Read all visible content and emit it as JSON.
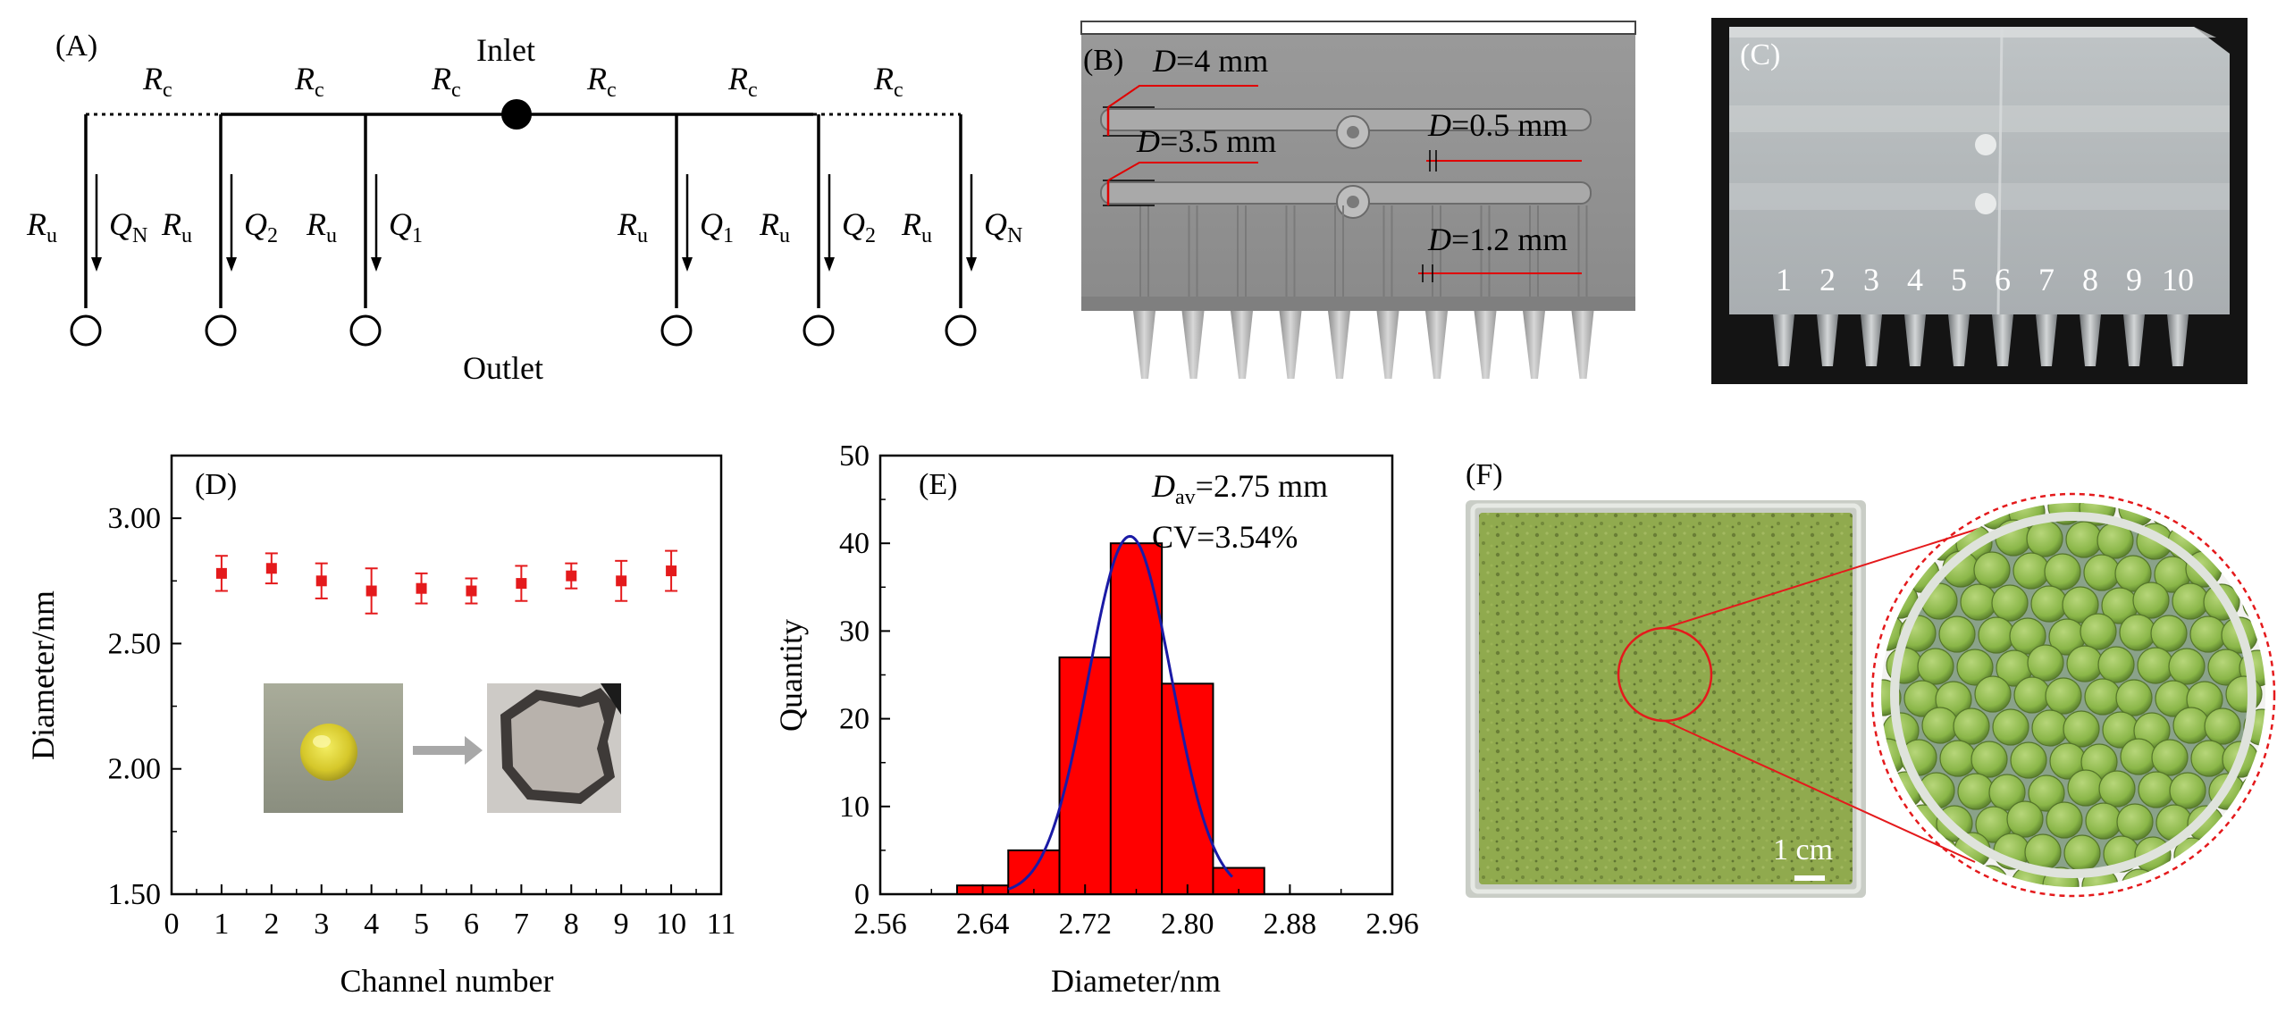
{
  "figure": {
    "panel_labels": {
      "a": "(A)",
      "b": "(B)",
      "c": "(C)",
      "d": "(D)",
      "e": "(E)",
      "f": "(F)"
    }
  },
  "panel_a": {
    "inlet": "Inlet",
    "outlet": "Outlet",
    "rc": "R",
    "rc_sub": "c",
    "ru": "R",
    "ru_sub": "u",
    "q": "Q",
    "q_subs": [
      "N",
      "2",
      "1",
      "1",
      "2",
      "N"
    ]
  },
  "panel_b": {
    "dims": [
      {
        "label": "D",
        "value": "=4 mm"
      },
      {
        "label": "D",
        "value": "=3.5 mm"
      },
      {
        "label": "D",
        "value": "=0.5 mm"
      },
      {
        "label": "D",
        "value": "=1.2 mm"
      }
    ]
  },
  "panel_c": {
    "channel_labels": [
      "1",
      "2",
      "3",
      "4",
      "5",
      "6",
      "7",
      "8",
      "9",
      "10"
    ]
  },
  "panel_f": {
    "scale_bar": "1 cm"
  },
  "chart_data": [
    {
      "type": "scatter",
      "panel": "D",
      "title": "",
      "xlabel": "Channel number",
      "ylabel": "Diameter/nm",
      "xlim": [
        0,
        11
      ],
      "ylim": [
        1.5,
        3.25
      ],
      "xticks": [
        "0",
        "1",
        "2",
        "3",
        "4",
        "5",
        "6",
        "7",
        "8",
        "9",
        "10",
        "11"
      ],
      "yticks": [
        "1.50",
        "2.00",
        "2.50",
        "3.00"
      ],
      "x": [
        1,
        2,
        3,
        4,
        5,
        6,
        7,
        8,
        9,
        10
      ],
      "y": [
        2.78,
        2.8,
        2.75,
        2.71,
        2.72,
        2.71,
        2.74,
        2.77,
        2.75,
        2.79
      ],
      "err": [
        0.07,
        0.06,
        0.07,
        0.09,
        0.06,
        0.05,
        0.07,
        0.05,
        0.08,
        0.08
      ],
      "color": "#e41a1c"
    },
    {
      "type": "bar",
      "panel": "E",
      "title": "",
      "xlabel": "Diameter/nm",
      "ylabel": "Quantity",
      "xlim": [
        2.56,
        2.96
      ],
      "ylim": [
        0,
        50
      ],
      "xticks": [
        "2.56",
        "2.64",
        "2.72",
        "2.80",
        "2.88",
        "2.96"
      ],
      "yticks": [
        "0",
        "10",
        "20",
        "30",
        "40",
        "50"
      ],
      "bin_centers": [
        2.64,
        2.68,
        2.72,
        2.76,
        2.8,
        2.84
      ],
      "bin_width": 0.04,
      "values": [
        1,
        5,
        27,
        40,
        24,
        3
      ],
      "fit_mean": 2.755,
      "fit_sd": 0.0325,
      "fit_peak": 40.8,
      "fit_range": [
        2.66,
        2.835
      ],
      "bar_color": "#ff0000",
      "fit_color": "#1a1aa6",
      "annotation_dav_main": "D",
      "annotation_dav_sub": "av",
      "annotation_dav_value": "=2.75 mm",
      "annotation_cv": "CV=3.54%"
    }
  ]
}
